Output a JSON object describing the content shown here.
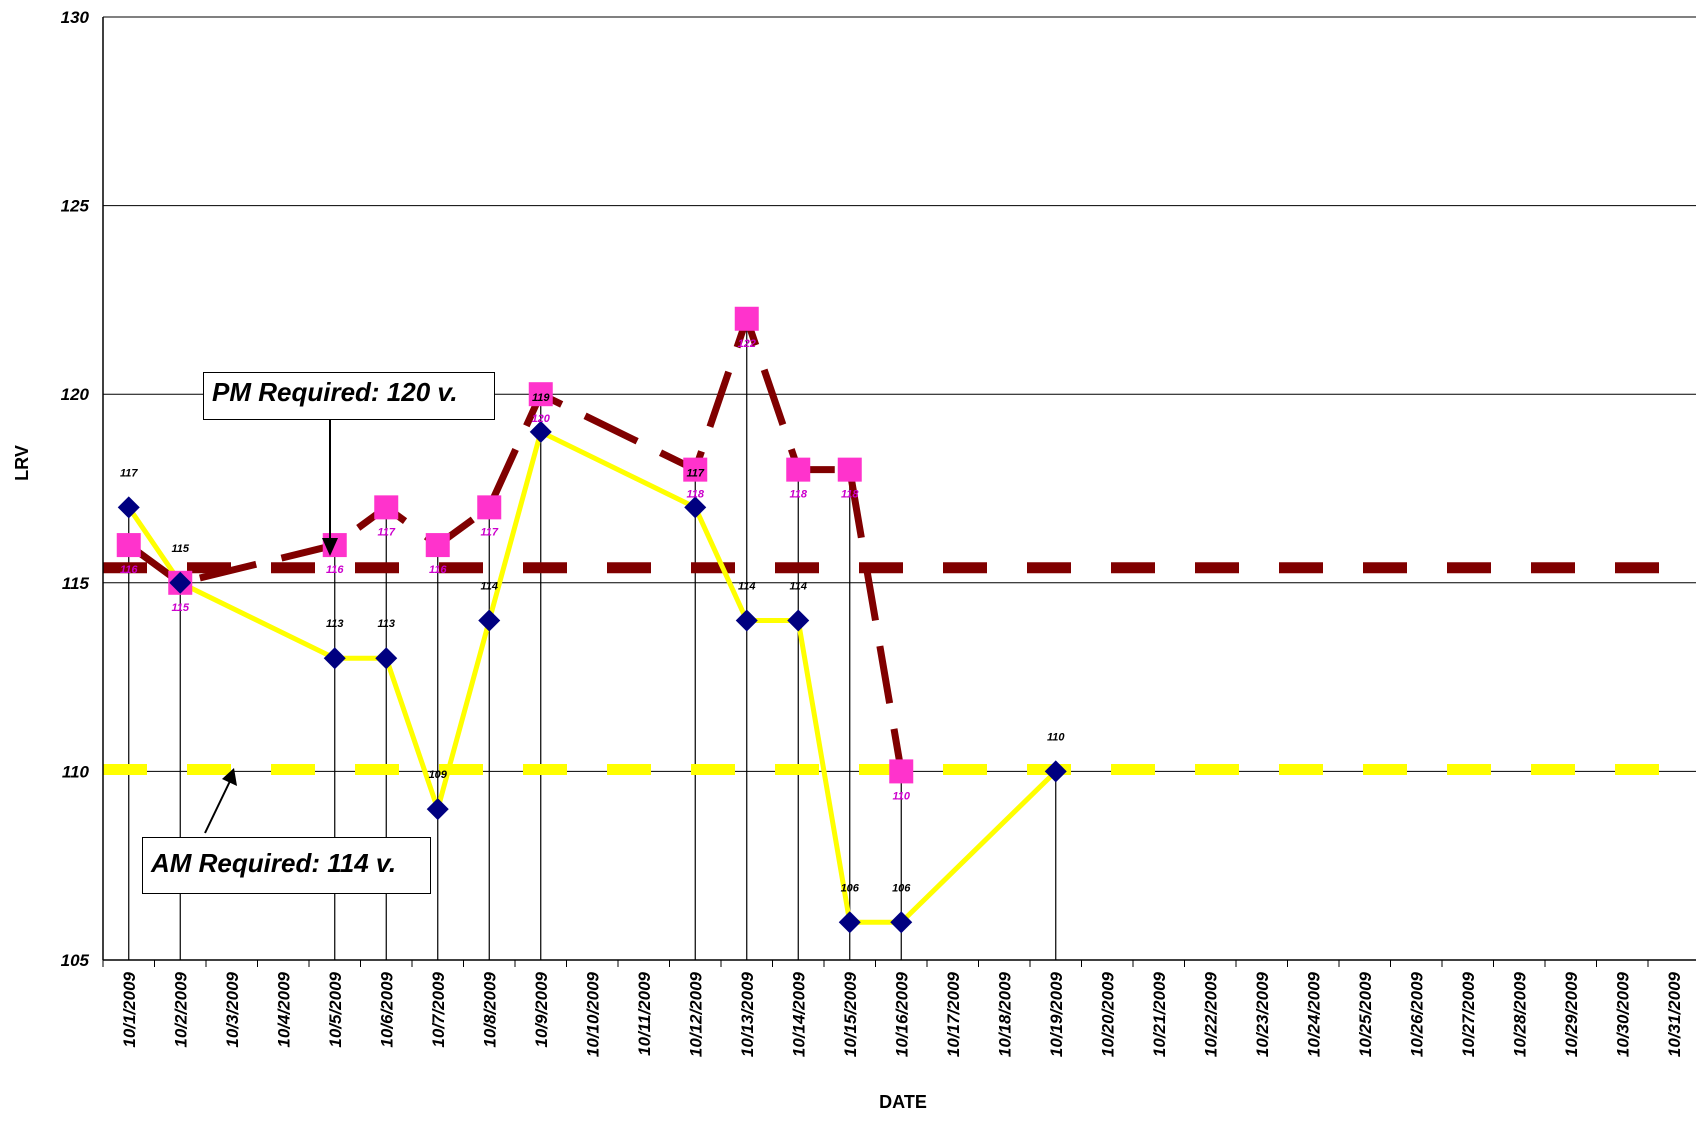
{
  "chart_data": {
    "type": "line",
    "xlabel": "DATE",
    "ylabel": "LRV",
    "ylim": [
      105,
      130
    ],
    "yticks": [
      "105",
      "110",
      "115",
      "120",
      "125",
      "130"
    ],
    "grid": true,
    "categories": [
      "10/1/2009",
      "10/2/2009",
      "10/3/2009",
      "10/4/2009",
      "10/5/2009",
      "10/6/2009",
      "10/7/2009",
      "10/8/2009",
      "10/9/2009",
      "10/10/2009",
      "10/11/2009",
      "10/12/2009",
      "10/13/2009",
      "10/14/2009",
      "10/15/2009",
      "10/16/2009",
      "10/17/2009",
      "10/18/2009",
      "10/19/2009",
      "10/20/2009",
      "10/21/2009",
      "10/22/2009",
      "10/23/2009",
      "10/24/2009",
      "10/25/2009",
      "10/26/2009",
      "10/27/2009",
      "10/28/2009",
      "10/29/2009",
      "10/30/2009",
      "10/31/2009"
    ],
    "series": [
      {
        "marker": "diamond",
        "line_color": "#ffff00",
        "marker_color": "#000080",
        "label_color": "#000000",
        "values": [
          117,
          115,
          null,
          null,
          113,
          113,
          109,
          114,
          119,
          null,
          null,
          117,
          114,
          114,
          106,
          106,
          null,
          null,
          110,
          null,
          null,
          null,
          null,
          null,
          null,
          null,
          null,
          null,
          null,
          null,
          null
        ]
      },
      {
        "marker": "square",
        "line_color": "#800000",
        "marker_color": "#ff33cc",
        "label_color": "#cc00cc",
        "values": [
          116,
          115,
          null,
          null,
          116,
          117,
          116,
          117,
          120,
          null,
          null,
          118,
          122,
          118,
          118,
          110,
          null,
          null,
          null,
          null,
          null,
          null,
          null,
          null,
          null,
          null,
          null,
          null,
          null,
          null,
          null
        ]
      }
    ],
    "reference_lines": [
      {
        "value": 115.4,
        "color": "#800000"
      },
      {
        "value": 110.05,
        "color": "#ffff00"
      }
    ],
    "annotations": [
      {
        "text": "PM Required: 120 v.",
        "points_to": "10/5/2009"
      },
      {
        "text": "AM Required: 114 v.",
        "points_to": "10/3/2009"
      }
    ]
  }
}
